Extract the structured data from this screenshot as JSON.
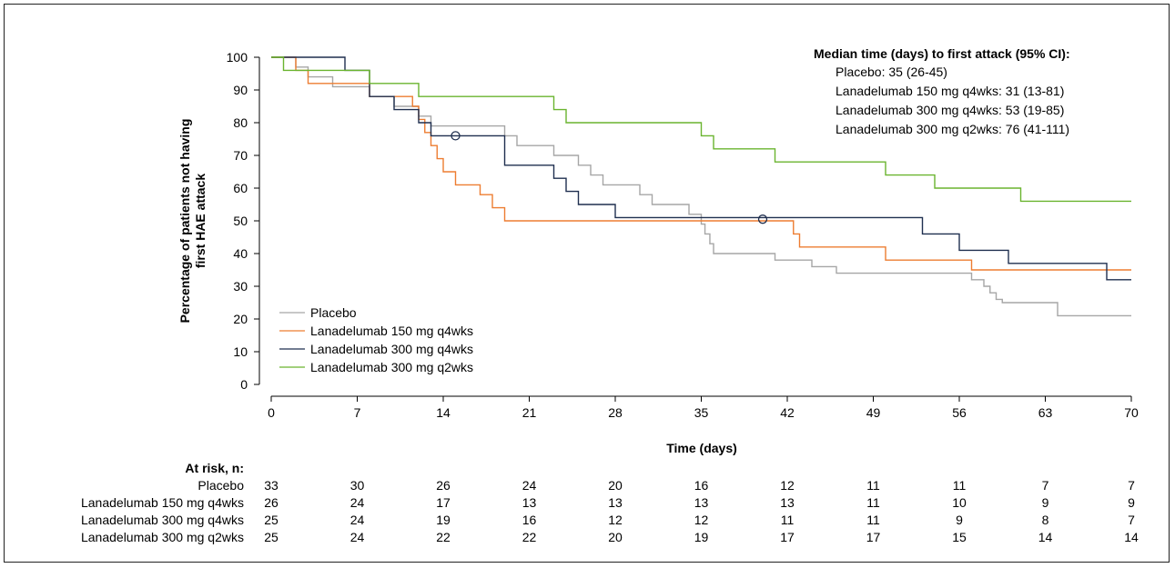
{
  "chart_data": {
    "type": "line",
    "subtype": "kaplan-meier-step",
    "xlabel": "Time (days)",
    "ylabel_line1": "Percentage of patients not having",
    "ylabel_line2": "first HAE attack",
    "x_ticks": [
      0,
      7,
      14,
      21,
      28,
      35,
      42,
      49,
      56,
      63,
      70
    ],
    "y_ticks": [
      0,
      10,
      20,
      30,
      40,
      50,
      60,
      70,
      80,
      90,
      100
    ],
    "xlim": [
      0,
      70
    ],
    "ylim": [
      0,
      100
    ],
    "grid": false,
    "legend_position": "bottom-left",
    "series": [
      {
        "name": "Placebo",
        "color": "#a6a6a6",
        "steps": [
          [
            0,
            100
          ],
          [
            2,
            97
          ],
          [
            3,
            94
          ],
          [
            5,
            91
          ],
          [
            8,
            88
          ],
          [
            10,
            85
          ],
          [
            12,
            82
          ],
          [
            13,
            79
          ],
          [
            19,
            76
          ],
          [
            20,
            73
          ],
          [
            23,
            70
          ],
          [
            25,
            67
          ],
          [
            26,
            64
          ],
          [
            27,
            61
          ],
          [
            30,
            58
          ],
          [
            31,
            55
          ],
          [
            34,
            52
          ],
          [
            35,
            49
          ],
          [
            35.3,
            46
          ],
          [
            35.7,
            43
          ],
          [
            36,
            40
          ],
          [
            41,
            38
          ],
          [
            44,
            36
          ],
          [
            46,
            34
          ],
          [
            57,
            32
          ],
          [
            58,
            30
          ],
          [
            58.5,
            28
          ],
          [
            59,
            26
          ],
          [
            59.5,
            25
          ],
          [
            64,
            21
          ],
          [
            70,
            21
          ]
        ]
      },
      {
        "name": "Lanadelumab 150 mg q4wks",
        "color": "#ed7d31",
        "steps": [
          [
            0,
            100
          ],
          [
            2,
            96
          ],
          [
            3,
            92
          ],
          [
            8,
            88
          ],
          [
            11.5,
            85
          ],
          [
            12,
            81
          ],
          [
            12.5,
            77
          ],
          [
            13,
            73
          ],
          [
            13.5,
            69
          ],
          [
            14,
            65
          ],
          [
            15,
            61
          ],
          [
            17,
            58
          ],
          [
            18,
            54
          ],
          [
            19,
            50
          ],
          [
            28,
            50
          ],
          [
            42.5,
            46
          ],
          [
            43,
            42
          ],
          [
            50,
            38
          ],
          [
            57,
            35
          ],
          [
            70,
            35
          ]
        ]
      },
      {
        "name": "Lanadelumab 300 mg q4wks",
        "color": "#1f2f4f",
        "steps": [
          [
            0,
            100
          ],
          [
            6,
            96
          ],
          [
            8,
            88
          ],
          [
            10,
            84
          ],
          [
            12,
            80
          ],
          [
            13,
            76
          ],
          [
            19,
            67
          ],
          [
            23,
            63
          ],
          [
            24,
            59
          ],
          [
            25,
            55
          ],
          [
            28,
            51
          ],
          [
            53,
            46
          ],
          [
            56,
            41
          ],
          [
            60,
            37
          ],
          [
            68,
            32
          ],
          [
            70,
            32
          ]
        ]
      },
      {
        "name": "Lanadelumab 300 mg q2wks",
        "color": "#6ab42f",
        "steps": [
          [
            0,
            100
          ],
          [
            1,
            96
          ],
          [
            8,
            92
          ],
          [
            12,
            88
          ],
          [
            23,
            84
          ],
          [
            24,
            80
          ],
          [
            35,
            76
          ],
          [
            36,
            72
          ],
          [
            41,
            68
          ],
          [
            50,
            64
          ],
          [
            54,
            60
          ],
          [
            61,
            56
          ],
          [
            70,
            56
          ]
        ]
      }
    ],
    "censor_markers": [
      {
        "series": "Lanadelumab 300 mg q4wks",
        "x": 15,
        "y": 76
      },
      {
        "series": "Lanadelumab 300 mg q4wks",
        "x": 40,
        "y": 50.5
      }
    ],
    "annotation": {
      "title": "Median time (days) to first attack (95% CI):",
      "lines": [
        "Placebo: 35 (26-45)",
        "Lanadelumab 150 mg q4wks: 31 (13-81)",
        "Lanadelumab 300 mg q4wks: 53 (19-85)",
        "Lanadelumab 300 mg q2wks: 76 (41-111)"
      ]
    },
    "at_risk": {
      "title": "At risk, n:",
      "rows": [
        {
          "label": "Placebo",
          "values": [
            33,
            30,
            26,
            24,
            20,
            16,
            12,
            11,
            11,
            7,
            7
          ]
        },
        {
          "label": "Lanadelumab 150 mg q4wks",
          "values": [
            26,
            24,
            17,
            13,
            13,
            13,
            13,
            11,
            10,
            9,
            9
          ]
        },
        {
          "label": "Lanadelumab 300 mg q4wks",
          "values": [
            25,
            24,
            19,
            16,
            12,
            12,
            11,
            11,
            9,
            8,
            7
          ]
        },
        {
          "label": "Lanadelumab 300 mg q2wks",
          "values": [
            25,
            24,
            22,
            22,
            20,
            19,
            17,
            17,
            15,
            14,
            14
          ]
        }
      ]
    }
  }
}
